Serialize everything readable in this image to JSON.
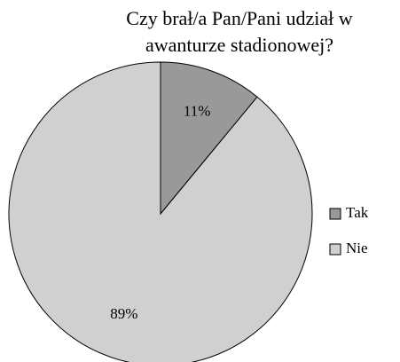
{
  "chart_data": {
    "type": "pie",
    "title": "Czy brał/a Pan/Pani udział w awanturze stadionowej?",
    "categories": [
      "Tak",
      "Nie"
    ],
    "values": [
      11,
      89
    ],
    "value_labels": [
      "11%",
      "89%"
    ],
    "colors": [
      "#999999",
      "#d0d0d0"
    ],
    "legend": "right"
  }
}
